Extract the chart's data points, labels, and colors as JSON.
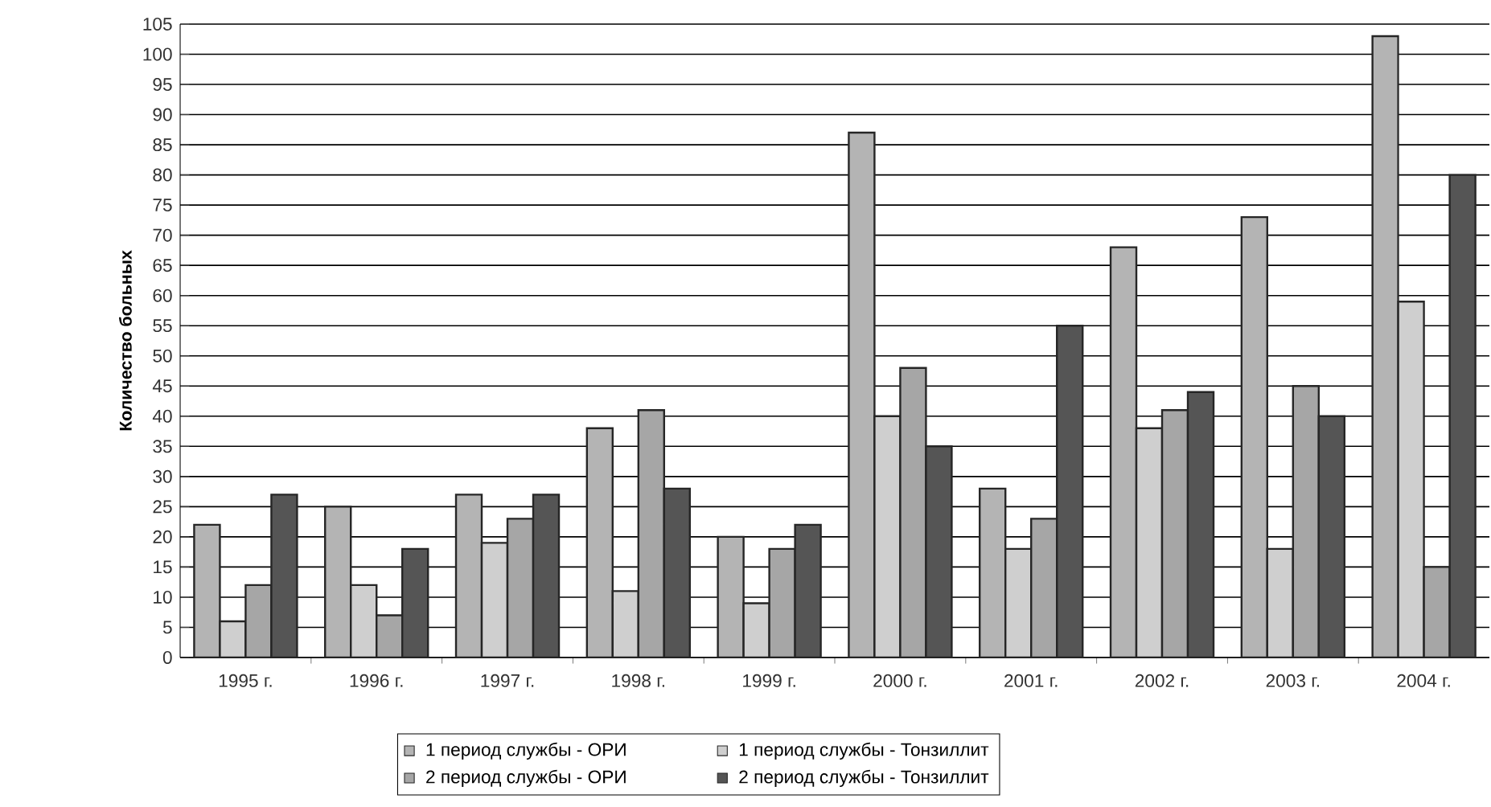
{
  "chart_data": {
    "type": "bar",
    "ylabel": "Количество больных",
    "categories": [
      "1995 г.",
      "1996 г.",
      "1997 г.",
      "1998 г.",
      "1999 г.",
      "2000 г.",
      "2001 г.",
      "2002 г.",
      "2003 г.",
      "2004 г."
    ],
    "series": [
      {
        "name": "1 период службы - ОРИ",
        "color": "#b4b4b4",
        "values": [
          22,
          25,
          27,
          38,
          20,
          87,
          28,
          68,
          73,
          103
        ]
      },
      {
        "name": "1 период службы - Тонзиллит",
        "color": "#cfcfcf",
        "values": [
          6,
          12,
          19,
          11,
          9,
          40,
          18,
          38,
          18,
          59
        ]
      },
      {
        "name": "2 период службы - ОРИ",
        "color": "#a6a6a6",
        "values": [
          12,
          7,
          23,
          41,
          18,
          48,
          23,
          41,
          45,
          15
        ]
      },
      {
        "name": "2 период службы - Тонзиллит",
        "color": "#555555",
        "values": [
          27,
          18,
          27,
          28,
          22,
          35,
          55,
          44,
          40,
          80
        ]
      }
    ],
    "ylim": [
      0,
      105
    ],
    "yticks": [
      0,
      5,
      10,
      15,
      20,
      25,
      30,
      35,
      40,
      45,
      50,
      55,
      60,
      65,
      70,
      75,
      80,
      85,
      90,
      95,
      100,
      105
    ],
    "grid": "y",
    "legend": "bottom"
  }
}
